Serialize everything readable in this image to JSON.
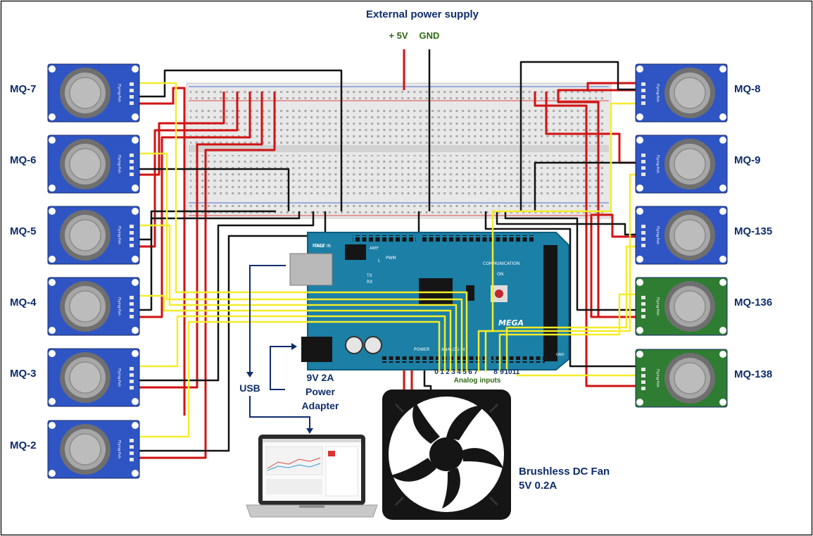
{
  "title": "External power supply",
  "supply": {
    "plus": "+ 5V",
    "gnd": "GND"
  },
  "sensors_left": [
    "MQ-7",
    "MQ-6",
    "MQ-5",
    "MQ-4",
    "MQ-3",
    "MQ-2"
  ],
  "sensors_right": [
    "MQ-8",
    "MQ-9",
    "MQ-135",
    "MQ-136",
    "MQ-138"
  ],
  "module_silk": "Flying-fish",
  "adapter": {
    "line1": "9V 2A",
    "line2": "Power",
    "line3": "Adapter"
  },
  "usb_label": "USB",
  "analog": {
    "pins": [
      "0",
      "1",
      "2",
      "3",
      "4",
      "5",
      "6",
      "7",
      "8",
      "9",
      "10",
      "11"
    ],
    "label": "Analog inputs"
  },
  "fan": {
    "line1": "Brushless DC Fan",
    "line2": "5V 0.2A"
  },
  "board": {
    "made_in": "MADE IN",
    "italy": "ITALY",
    "pwm": "PWM",
    "communication": "COMMUNICATION",
    "logo": "MEGA",
    "power": "POWER",
    "analog_in": "ANALOG IN",
    "led_l": "L",
    "led_tx": "TX",
    "led_rx": "RX",
    "led_on": "ON",
    "aref": "AREF",
    "gnd_pin": "GND"
  },
  "colors": {
    "sensor_blue": "#2f55c4",
    "sensor_green": "#2e7d32",
    "board_teal": "#1b7fa6",
    "wire_red": "#d11212",
    "wire_black": "#111111",
    "wire_yellow": "#f4ec2a",
    "title_navy": "#0f2d6b",
    "supply_green": "#2e6b10"
  }
}
